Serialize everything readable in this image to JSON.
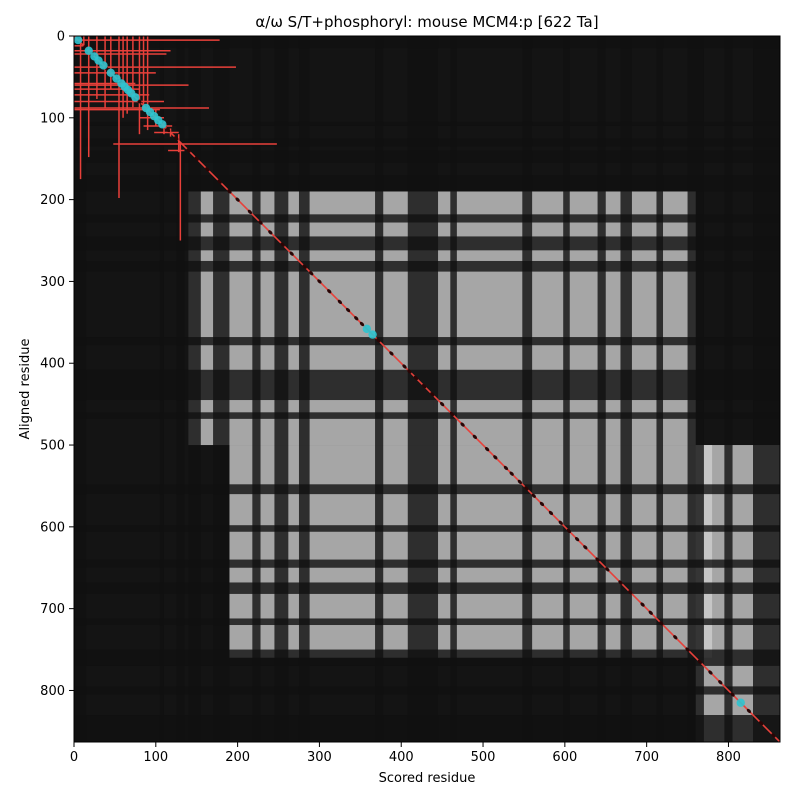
{
  "chart_data": {
    "type": "heatmap",
    "title": "α/ω S/T+phosphoryl: mouse MCM4:p [622 Ta]",
    "xlabel": "Scored residue",
    "ylabel": "Aligned residue",
    "xlim": [
      0,
      863
    ],
    "ylim": [
      863,
      0
    ],
    "x_ticks": [
      0,
      100,
      200,
      300,
      400,
      500,
      600,
      700,
      800
    ],
    "y_ticks": [
      0,
      100,
      200,
      300,
      400,
      500,
      600,
      700,
      800
    ],
    "colormap": "grayscale",
    "diagonal_line": {
      "from": [
        0,
        0
      ],
      "to": [
        863,
        863
      ],
      "color": "#e8403a"
    },
    "dark_bands": [
      [
        0,
        15
      ],
      [
        105,
        110
      ],
      [
        125,
        135
      ],
      [
        140,
        155
      ],
      [
        170,
        190
      ],
      [
        218,
        228
      ],
      [
        245,
        262
      ],
      [
        275,
        288
      ],
      [
        368,
        378
      ],
      [
        408,
        445
      ],
      [
        460,
        468
      ],
      [
        548,
        560
      ],
      [
        598,
        606
      ],
      [
        640,
        650
      ],
      [
        668,
        682
      ],
      [
        712,
        720
      ],
      [
        750,
        770
      ],
      [
        795,
        805
      ],
      [
        830,
        863
      ]
    ],
    "bright_regions": [
      {
        "x": [
          140,
          760
        ],
        "y": [
          190,
          410
        ]
      },
      {
        "x": [
          140,
          440
        ],
        "y": [
          410,
          500
        ]
      },
      {
        "x": [
          440,
          760
        ],
        "y": [
          410,
          500
        ]
      },
      {
        "x": [
          190,
          780
        ],
        "y": [
          500,
          760
        ]
      },
      {
        "x": [
          760,
          863
        ],
        "y": [
          500,
          863
        ]
      }
    ],
    "crosses": [
      {
        "x": 8,
        "y": 5,
        "xerr": [
          8,
          170
        ],
        "yerr": [
          5,
          170
        ]
      },
      {
        "x": 12,
        "y": 12,
        "xerr": [
          12,
          0
        ],
        "yerr": [
          12,
          0
        ]
      },
      {
        "x": 18,
        "y": 18,
        "xerr": [
          18,
          100
        ],
        "yerr": [
          18,
          130
        ]
      },
      {
        "x": 28,
        "y": 22,
        "xerr": [
          28,
          85
        ],
        "yerr": [
          22,
          55
        ]
      },
      {
        "x": 38,
        "y": 38,
        "xerr": [
          38,
          160
        ],
        "yerr": [
          38,
          50
        ]
      },
      {
        "x": 45,
        "y": 45,
        "xerr": [
          45,
          55
        ],
        "yerr": [
          45,
          20
        ]
      },
      {
        "x": 55,
        "y": 58,
        "xerr": [
          55,
          20
        ],
        "yerr": [
          58,
          140
        ]
      },
      {
        "x": 60,
        "y": 60,
        "xerr": [
          60,
          80
        ],
        "yerr": [
          60,
          40
        ]
      },
      {
        "x": 65,
        "y": 65,
        "xerr": [
          65,
          15
        ],
        "yerr": [
          65,
          30
        ]
      },
      {
        "x": 72,
        "y": 72,
        "xerr": [
          72,
          20
        ],
        "yerr": [
          72,
          15
        ]
      },
      {
        "x": 80,
        "y": 80,
        "xerr": [
          80,
          30
        ],
        "yerr": [
          80,
          40
        ]
      },
      {
        "x": 85,
        "y": 88,
        "xerr": [
          85,
          80
        ],
        "yerr": [
          88,
          0
        ]
      },
      {
        "x": 90,
        "y": 90,
        "xerr": [
          90,
          15
        ],
        "yerr": [
          90,
          25
        ]
      },
      {
        "x": 100,
        "y": 100,
        "xerr": [
          20,
          10
        ],
        "yerr": [
          10,
          10
        ]
      },
      {
        "x": 110,
        "y": 110,
        "xerr": [
          25,
          10
        ],
        "yerr": [
          5,
          10
        ]
      },
      {
        "x": 118,
        "y": 118,
        "xerr": [
          20,
          10
        ],
        "yerr": [
          5,
          5
        ]
      },
      {
        "x": 128,
        "y": 132,
        "xerr": [
          80,
          120
        ],
        "yerr": [
          12,
          10
        ]
      },
      {
        "x": 130,
        "y": 140,
        "xerr": [
          15,
          5
        ],
        "yerr": [
          10,
          110
        ]
      }
    ],
    "highlighted_points": [
      [
        5,
        5
      ],
      [
        18,
        18
      ],
      [
        25,
        25
      ],
      [
        30,
        30
      ],
      [
        36,
        36
      ],
      [
        45,
        45
      ],
      [
        52,
        52
      ],
      [
        58,
        58
      ],
      [
        62,
        62
      ],
      [
        66,
        66
      ],
      [
        70,
        70
      ],
      [
        75,
        75
      ],
      [
        88,
        88
      ],
      [
        93,
        93
      ],
      [
        98,
        98
      ],
      [
        103,
        103
      ],
      [
        108,
        108
      ],
      [
        358,
        358
      ],
      [
        365,
        365
      ],
      [
        815,
        815
      ]
    ],
    "diagonal_markers": [
      [
        14,
        14
      ],
      [
        22,
        22
      ],
      [
        40,
        40
      ],
      [
        55,
        55
      ],
      [
        80,
        80
      ],
      [
        115,
        115
      ],
      [
        125,
        125
      ],
      [
        140,
        140
      ],
      [
        150,
        150
      ],
      [
        163,
        163
      ],
      [
        178,
        178
      ],
      [
        190,
        190
      ],
      [
        200,
        200
      ],
      [
        215,
        215
      ],
      [
        228,
        228
      ],
      [
        240,
        240
      ],
      [
        255,
        255
      ],
      [
        266,
        266
      ],
      [
        282,
        282
      ],
      [
        290,
        290
      ],
      [
        300,
        300
      ],
      [
        312,
        312
      ],
      [
        325,
        325
      ],
      [
        335,
        335
      ],
      [
        345,
        345
      ],
      [
        352,
        352
      ],
      [
        372,
        372
      ],
      [
        388,
        388
      ],
      [
        404,
        404
      ],
      [
        410,
        410
      ],
      [
        418,
        418
      ],
      [
        428,
        428
      ],
      [
        438,
        438
      ],
      [
        450,
        450
      ],
      [
        462,
        462
      ],
      [
        475,
        475
      ],
      [
        490,
        490
      ],
      [
        505,
        505
      ],
      [
        515,
        515
      ],
      [
        528,
        528
      ],
      [
        535,
        535
      ],
      [
        545,
        545
      ],
      [
        553,
        553
      ],
      [
        562,
        562
      ],
      [
        572,
        572
      ],
      [
        583,
        583
      ],
      [
        595,
        595
      ],
      [
        605,
        605
      ],
      [
        615,
        615
      ],
      [
        625,
        625
      ],
      [
        640,
        640
      ],
      [
        652,
        652
      ],
      [
        668,
        668
      ],
      [
        680,
        680
      ],
      [
        695,
        695
      ],
      [
        705,
        705
      ],
      [
        718,
        718
      ],
      [
        735,
        735
      ],
      [
        750,
        750
      ],
      [
        765,
        765
      ],
      [
        778,
        778
      ],
      [
        790,
        790
      ],
      [
        805,
        805
      ],
      [
        825,
        825
      ],
      [
        840,
        840
      ],
      [
        855,
        855
      ]
    ]
  }
}
